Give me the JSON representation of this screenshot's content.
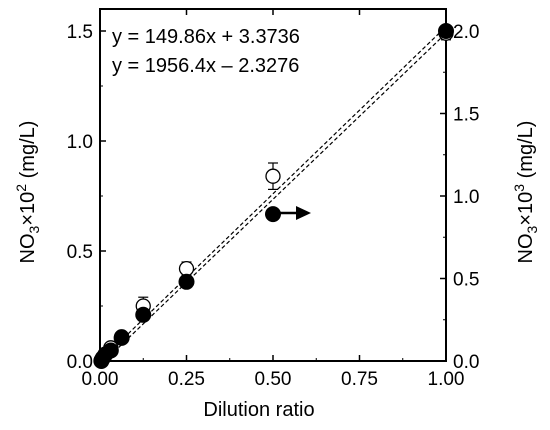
{
  "chart_data": {
    "type": "scatter",
    "xlabel": "Dilution ratio",
    "ylabel_left": {
      "prefix": "NO",
      "sub": "3",
      "mid": "×10",
      "sup": "2",
      "suffix": " (mg/L)"
    },
    "ylabel_right": {
      "prefix": "NO",
      "sub": "3",
      "mid": "×10",
      "sup": "3",
      "suffix": " (mg/L)"
    },
    "xlim": [
      0,
      1.0
    ],
    "ylim_left": [
      0,
      1.6
    ],
    "ylim_right": [
      0,
      2.1333
    ],
    "x_ticks": [
      "0.00",
      "0.25",
      "0.50",
      "0.75",
      "1.00"
    ],
    "y_ticks_left": [
      "0.0",
      "0.5",
      "1.0",
      "1.5"
    ],
    "y_ticks_right": [
      "0.0",
      "0.5",
      "1.0",
      "1.5",
      "2.0"
    ],
    "grid": false,
    "annotations": [
      "y = 149.86x + 3.3736",
      "y = 1956.4x – 2.3276"
    ],
    "series": [
      {
        "marker": "open-circle",
        "axis": "left",
        "x": [
          0.0039,
          0.0078,
          0.0156,
          0.03125,
          0.0625,
          0.125,
          0.25,
          0.5,
          1.0
        ],
        "y": [
          0.005,
          0.015,
          0.03,
          0.06,
          0.11,
          0.25,
          0.42,
          0.84,
          1.49
        ],
        "err": [
          0.005,
          0.005,
          0.008,
          0.01,
          0.015,
          0.04,
          0.03,
          0.06,
          0.03
        ]
      },
      {
        "marker": "filled-circle",
        "axis": "right",
        "x": [
          0.0039,
          0.0078,
          0.0156,
          0.03125,
          0.0625,
          0.125,
          0.25,
          0.5,
          1.0
        ],
        "y": [
          0.0,
          0.016,
          0.04,
          0.064,
          0.14,
          0.28,
          0.48,
          0.89,
          2.0
        ]
      }
    ],
    "fit_lines": [
      {
        "x": [
          0,
          1.0
        ],
        "y_left": [
          0.0,
          1.52
        ]
      },
      {
        "x": [
          0,
          1.0
        ],
        "y_left": [
          -0.02,
          1.49
        ]
      }
    ]
  }
}
